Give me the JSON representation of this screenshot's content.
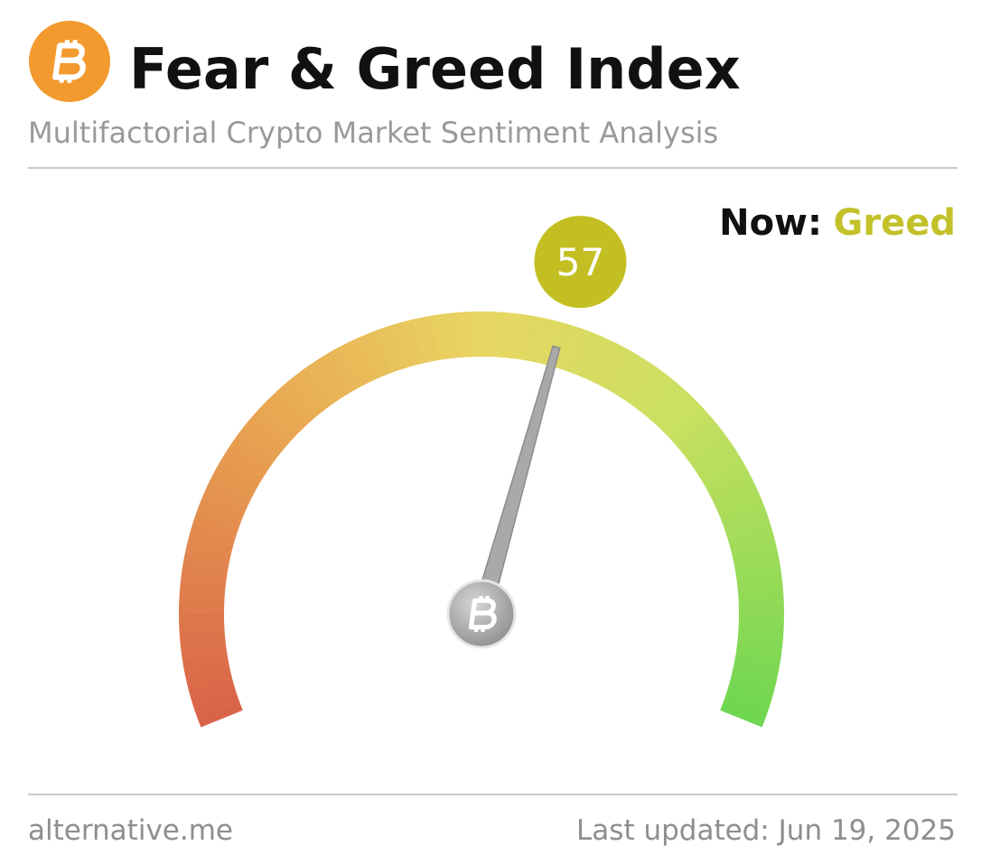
{
  "chart_data": {
    "type": "gauge",
    "title": "Fear & Greed Index",
    "subtitle": "Multifactorial Crypto Market Sentiment Analysis",
    "value": 57,
    "ylim": [
      0,
      100
    ],
    "value_color": "#c3bf23",
    "status_label": "Now:",
    "status": "Greed",
    "status_color": "#c3c12a",
    "source": "alternative.me",
    "updated": "Last updated: Jun 19, 2025"
  }
}
